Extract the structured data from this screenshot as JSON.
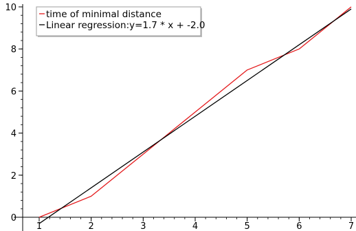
{
  "chart_data": {
    "type": "line",
    "title": "",
    "xlabel": "",
    "ylabel": "",
    "xlim": [
      1,
      7
    ],
    "ylim": [
      0,
      10
    ],
    "x_ticks": [
      1,
      2,
      3,
      4,
      5,
      6,
      7
    ],
    "y_ticks": [
      0,
      2,
      4,
      6,
      8,
      10
    ],
    "grid": false,
    "legend_placement": "top-left",
    "series": [
      {
        "name": "time of minimal distance",
        "color": "#e41a1c",
        "x": [
          1,
          2,
          3,
          4,
          5,
          6,
          7
        ],
        "y": [
          0,
          1,
          3,
          5,
          7,
          8,
          10
        ]
      },
      {
        "name": "Linear regression:y=1.7 * x + -2.0",
        "color": "#000000",
        "x": [
          1,
          7
        ],
        "y": [
          -0.3,
          9.9
        ]
      }
    ]
  }
}
